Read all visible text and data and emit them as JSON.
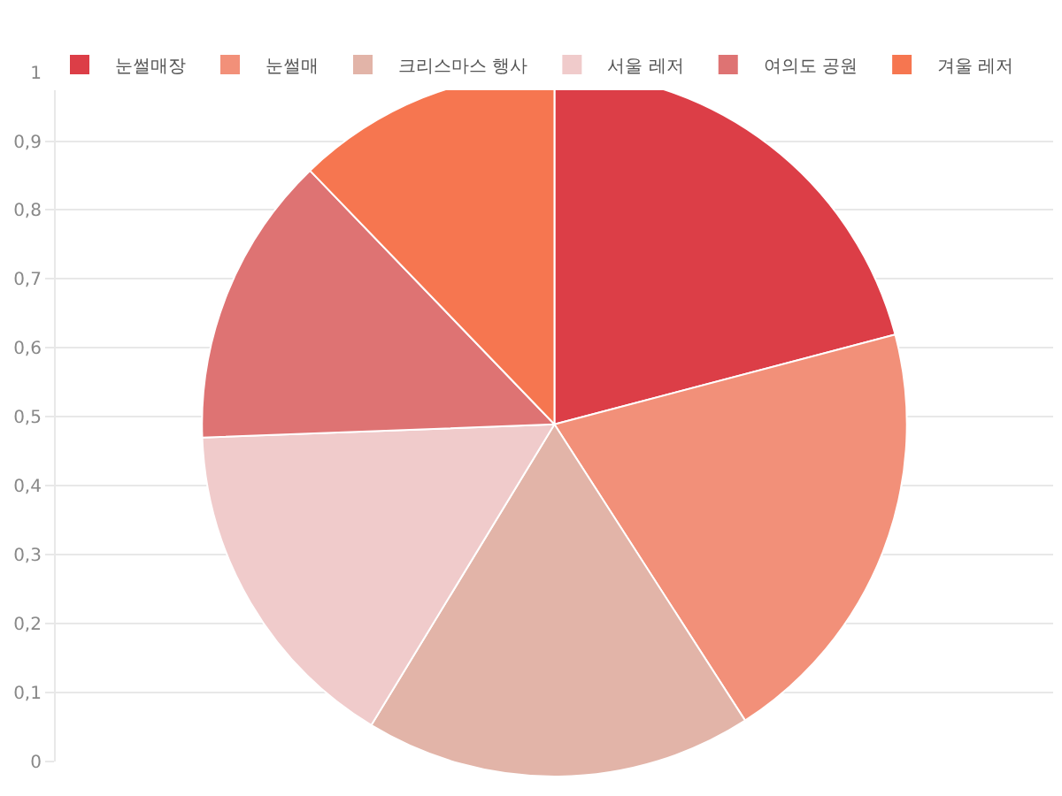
{
  "chart_data": {
    "type": "pie",
    "categories": [
      "눈썰매장",
      "눈썰매",
      "크리스마스 행사",
      "서울 레저",
      "여의도 공원",
      "겨울 레저"
    ],
    "values": [
      20.9,
      20.0,
      17.8,
      15.7,
      13.4,
      12.2
    ],
    "colors": [
      "#dc3e47",
      "#f29079",
      "#e2b4a8",
      "#f0cbcb",
      "#de7373",
      "#f67650"
    ],
    "annotations": [
      "0",
      "0,1",
      "0,2",
      "0,3",
      "0,4",
      "0,5",
      "0,6",
      "0,7",
      "0,8",
      "0,9",
      "1"
    ],
    "grid": "y",
    "legend": "top"
  }
}
